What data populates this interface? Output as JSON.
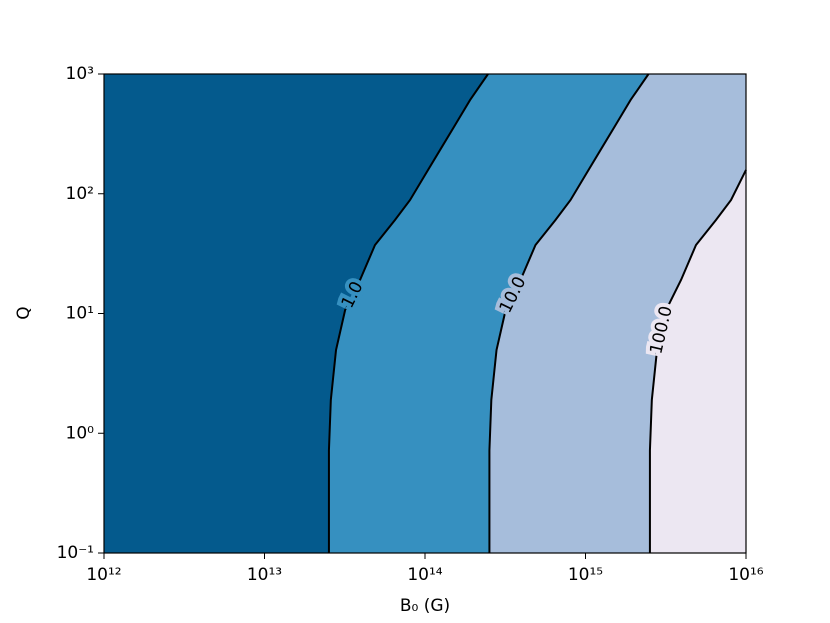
{
  "chart_data": {
    "type": "contour",
    "xlabel": "B₀ (G)",
    "ylabel": "Q",
    "xlog": true,
    "ylog": true,
    "xlim": [
      1000000000000.0,
      1e+16
    ],
    "ylim": [
      0.1,
      1000
    ],
    "xticks": [
      {
        "value": 1000000000000.0,
        "label": "10¹²"
      },
      {
        "value": 10000000000000.0,
        "label": "10¹³"
      },
      {
        "value": 100000000000000.0,
        "label": "10¹⁴"
      },
      {
        "value": 1000000000000000.0,
        "label": "10¹⁵"
      },
      {
        "value": 1e+16,
        "label": "10¹⁶"
      }
    ],
    "yticks": [
      {
        "value": 0.1,
        "label": "10⁻¹"
      },
      {
        "value": 1,
        "label": "10⁰"
      },
      {
        "value": 10,
        "label": "10¹"
      },
      {
        "value": 100,
        "label": "10²"
      },
      {
        "value": 1000,
        "label": "10³"
      }
    ],
    "fills": [
      "#045a8d",
      "#3690c0",
      "#a6bddb",
      "#ece7f2"
    ],
    "line_color": "#000000",
    "levels": [
      {
        "value": 1,
        "label": "1.0"
      },
      {
        "value": 10,
        "label": "10.0"
      },
      {
        "value": 100,
        "label": "100.0"
      }
    ],
    "contours": [
      {
        "x": [
          25200000000000.0,
          25200000000000.0,
          25900000000000.0,
          27900000000000.0,
          31800000000000.0,
          39400000000000.0,
          48800000000000.0,
          65000000000000.0,
          80700000000000.0,
          100000000000000.0,
          124000000000000.0,
          154000000000000.0,
          191000000000000.0,
          247000000000000.0
        ],
        "y": [
          0.1,
          0.72,
          1.9,
          4.95,
          10.7,
          19.1,
          37.3,
          60.4,
          88.7,
          143.5,
          231.7,
          375,
          607,
          1000
        ]
      },
      {
        "x": [
          252000000000000.0,
          252000000000000.0,
          259000000000000.0,
          279000000000000.0,
          318000000000000.0,
          394000000000000.0,
          488000000000000.0,
          650000000000000.0,
          807000000000000.0,
          1000000000000000.0,
          1240000000000000.0,
          1540000000000000.0,
          1910000000000000.0,
          2470000000000000.0
        ],
        "y": [
          0.1,
          0.72,
          1.9,
          4.95,
          10.7,
          19.1,
          37.3,
          60.4,
          88.7,
          143.5,
          231.7,
          375,
          607,
          1000
        ]
      },
      {
        "x": [
          2520000000000000.0,
          2520000000000000.0,
          2590000000000000.0,
          2790000000000000.0,
          3180000000000000.0,
          3940000000000000.0,
          4880000000000000.0,
          6500000000000000.0,
          8070000000000000.0,
          1e+16
        ],
        "y": [
          0.1,
          0.72,
          1.9,
          4.95,
          10.7,
          19.1,
          37.3,
          60.4,
          88.7,
          158
        ]
      }
    ]
  }
}
